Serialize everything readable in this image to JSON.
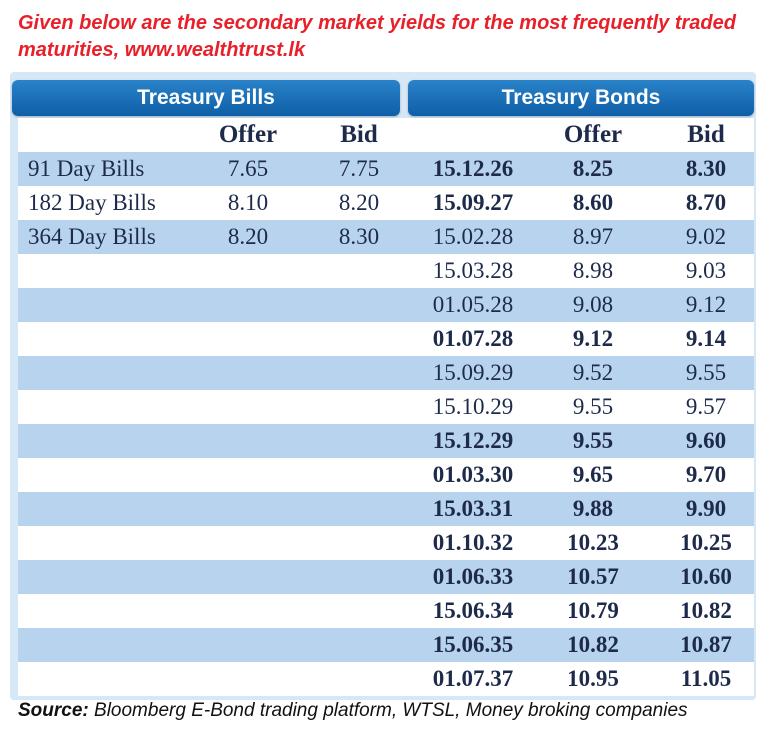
{
  "headline": "Given below are the secondary market yields for the most frequently traded maturities, www.wealthtrust.lk",
  "bills_header": "Treasury Bills",
  "bonds_header": "Treasury Bonds",
  "col": {
    "offer": "Offer",
    "bid": "Bid"
  },
  "bills": [
    {
      "name": "91 Day Bills",
      "offer": "7.65",
      "bid": "7.75"
    },
    {
      "name": "182 Day Bills",
      "offer": "8.10",
      "bid": "8.20"
    },
    {
      "name": "364 Day Bills",
      "offer": "8.20",
      "bid": "8.30"
    }
  ],
  "bonds": [
    {
      "maturity": "15.12.26",
      "offer": "8.25",
      "bid": "8.30"
    },
    {
      "maturity": "15.09.27",
      "offer": "8.60",
      "bid": "8.70"
    },
    {
      "maturity": "15.02.28",
      "offer": "8.97",
      "bid": "9.02"
    },
    {
      "maturity": "15.03.28",
      "offer": "8.98",
      "bid": "9.03"
    },
    {
      "maturity": "01.05.28",
      "offer": "9.08",
      "bid": "9.12"
    },
    {
      "maturity": "01.07.28",
      "offer": "9.12",
      "bid": "9.14"
    },
    {
      "maturity": "15.09.29",
      "offer": "9.52",
      "bid": "9.55"
    },
    {
      "maturity": "15.10.29",
      "offer": "9.55",
      "bid": "9.57"
    },
    {
      "maturity": "15.12.29",
      "offer": "9.55",
      "bid": "9.60"
    },
    {
      "maturity": "01.03.30",
      "offer": "9.65",
      "bid": "9.70"
    },
    {
      "maturity": "15.03.31",
      "offer": "9.88",
      "bid": "9.90"
    },
    {
      "maturity": "01.10.32",
      "offer": "10.23",
      "bid": "10.25"
    },
    {
      "maturity": "01.06.33",
      "offer": "10.57",
      "bid": "10.60"
    },
    {
      "maturity": "15.06.34",
      "offer": "10.79",
      "bid": "10.82"
    },
    {
      "maturity": "15.06.35",
      "offer": "10.82",
      "bid": "10.87"
    },
    {
      "maturity": "01.07.37",
      "offer": "10.95",
      "bid": "11.05"
    }
  ],
  "source": {
    "label": "Source:",
    "text": " Bloomberg E-Bond trading platform, WTSL, Money broking companies"
  },
  "colors": {
    "headline": "#e8202a",
    "header": "#0e5fa8",
    "shade": "#b8d3ee",
    "panel": "#d6e7f5"
  }
}
